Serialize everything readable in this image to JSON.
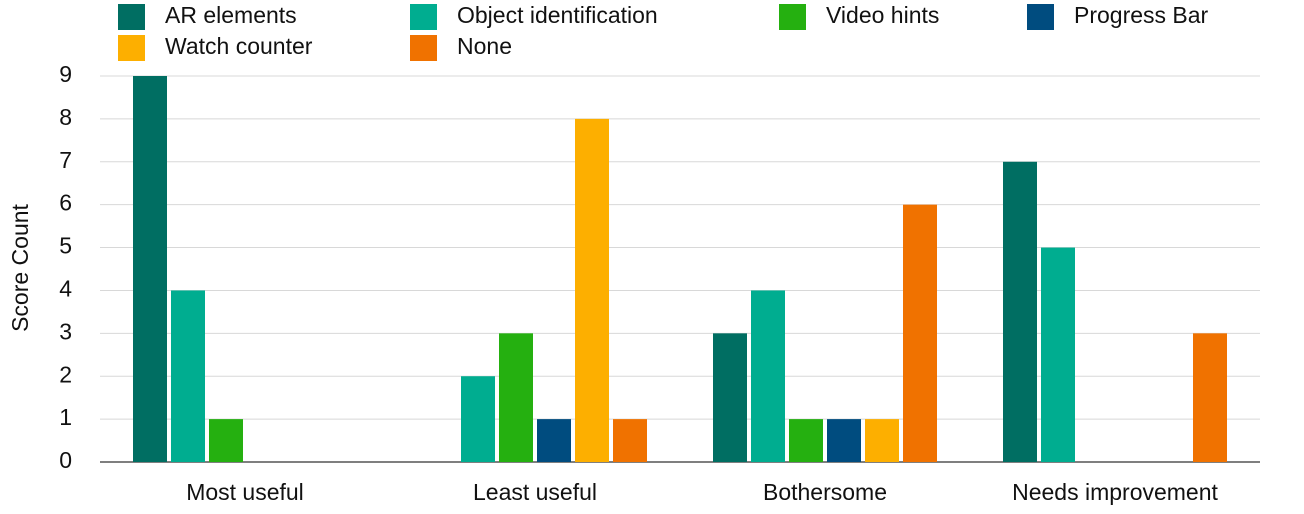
{
  "chart_data": {
    "type": "bar",
    "y_label": "Score Count",
    "categories": [
      "Most useful",
      "Least useful",
      "Bothersome",
      "Needs improvement"
    ],
    "series": [
      {
        "name": "AR elements",
        "color": "#006e62",
        "values": [
          9,
          0,
          3,
          7
        ]
      },
      {
        "name": "Object identification",
        "color": "#00ad90",
        "values": [
          4,
          2,
          4,
          5
        ]
      },
      {
        "name": "Video hints",
        "color": "#25b010",
        "values": [
          1,
          3,
          1,
          0
        ]
      },
      {
        "name": "Progress Bar",
        "color": "#004c7f",
        "values": [
          0,
          1,
          1,
          0
        ]
      },
      {
        "name": "Watch counter",
        "color": "#fdaf00",
        "values": [
          0,
          8,
          1,
          0
        ]
      },
      {
        "name": "None",
        "color": "#f07200",
        "values": [
          0,
          1,
          6,
          3
        ]
      }
    ],
    "ylim": [
      0,
      9
    ],
    "yticks": [
      0,
      1,
      2,
      3,
      4,
      5,
      6,
      7,
      8,
      9
    ],
    "grid": true,
    "legend": "top"
  }
}
